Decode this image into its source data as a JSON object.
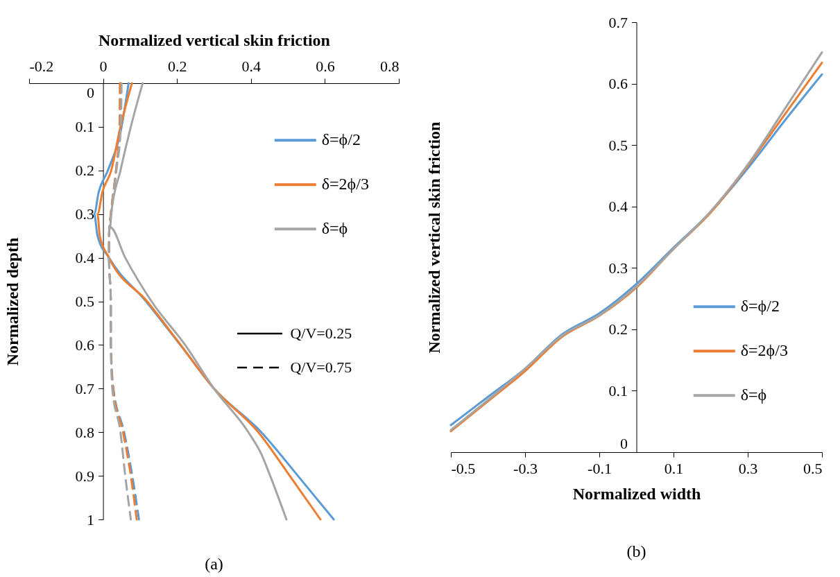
{
  "chart_data": [
    {
      "type": "line",
      "title": "(a)",
      "xlabel": "Normalized vertical skin friction",
      "ylabel": "Normalized depth",
      "xlim": [
        -0.2,
        0.8
      ],
      "xticks": [
        -0.2,
        0,
        0.2,
        0.4,
        0.6,
        0.8
      ],
      "ylim": [
        1,
        0
      ],
      "yticks": [
        0,
        0.1,
        0.2,
        0.3,
        0.4,
        0.5,
        0.6,
        0.7,
        0.8,
        0.9,
        1
      ],
      "legend": "top right",
      "annotations": [
        "Q/V=0.25",
        "Q/V=0.75"
      ],
      "series": [
        {
          "name": "δ=ϕ/2",
          "color": "#5b9bd5",
          "line_style": "solid",
          "x": [
            0.069,
            0.05,
            0.013,
            -0.012,
            -0.024,
            -0.015,
            0.016,
            0.116,
            0.209,
            0.3,
            0.428,
            0.527,
            0.624
          ],
          "values": [
            0,
            0.1,
            0.2,
            0.25,
            0.3,
            0.35,
            0.4,
            0.5,
            0.6,
            0.7,
            0.8,
            0.9,
            1
          ]
        },
        {
          "name": "δ=2ϕ/3",
          "color": "#ed7d31",
          "line_style": "solid",
          "x": [
            0.078,
            0.047,
            0.022,
            -0.002,
            -0.015,
            -0.009,
            0.016,
            0.119,
            0.21,
            0.3,
            0.42,
            0.505,
            0.588
          ],
          "values": [
            0,
            0.1,
            0.2,
            0.25,
            0.3,
            0.35,
            0.4,
            0.5,
            0.6,
            0.7,
            0.8,
            0.9,
            1
          ]
        },
        {
          "name": "δ=ϕ",
          "color": "#a5a5a5",
          "line_style": "solid",
          "x": [
            0.107,
            0.075,
            0.047,
            0.022,
            0.019,
            0.06,
            0.131,
            0.222,
            0.3,
            0.393,
            0.428,
            0.452,
            0.496
          ],
          "values": [
            0,
            0.1,
            0.2,
            0.3,
            0.33,
            0.4,
            0.5,
            0.6,
            0.7,
            0.8,
            0.85,
            0.9,
            1
          ]
        },
        {
          "color": "#5b9bd5",
          "line_style": "dashed",
          "x": [
            0.046,
            0.045,
            0.035,
            0.021,
            0.016,
            0.016,
            0.021,
            0.021,
            0.028,
            0.057,
            0.079,
            0.097
          ],
          "values": [
            0,
            0.1,
            0.2,
            0.3,
            0.35,
            0.4,
            0.5,
            0.6,
            0.7,
            0.8,
            0.9,
            1
          ]
        },
        {
          "color": "#ed7d31",
          "line_style": "dashed",
          "x": [
            0.046,
            0.045,
            0.035,
            0.021,
            0.016,
            0.016,
            0.021,
            0.021,
            0.027,
            0.054,
            0.075,
            0.091
          ],
          "values": [
            0,
            0.1,
            0.2,
            0.3,
            0.35,
            0.4,
            0.5,
            0.6,
            0.7,
            0.8,
            0.9,
            1
          ]
        },
        {
          "color": "#a5a5a5",
          "line_style": "dashed",
          "x": [
            0.05,
            0.048,
            0.036,
            0.022,
            0.016,
            0.016,
            0.021,
            0.021,
            0.025,
            0.047,
            0.06,
            0.075
          ],
          "values": [
            0,
            0.1,
            0.2,
            0.3,
            0.35,
            0.4,
            0.5,
            0.6,
            0.7,
            0.8,
            0.9,
            1
          ]
        }
      ]
    },
    {
      "type": "line",
      "title": "(b)",
      "xlabel": "Normalized width",
      "ylabel": "Normalized vertical skin friction",
      "xlim": [
        -0.5,
        0.5
      ],
      "xticks": [
        -0.5,
        -0.3,
        -0.1,
        0.1,
        0.3,
        0.5
      ],
      "ylim": [
        0,
        0.7
      ],
      "yticks": [
        0,
        0.1,
        0.2,
        0.3,
        0.4,
        0.5,
        0.6,
        0.7
      ],
      "legend": "right",
      "x": [
        -0.5,
        -0.4,
        -0.3,
        -0.2,
        -0.1,
        0,
        0.1,
        0.2,
        0.3,
        0.4,
        0.5
      ],
      "series": [
        {
          "name": "δ=ϕ/2",
          "color": "#5b9bd5",
          "values": [
            0.044,
            0.09,
            0.136,
            0.192,
            0.226,
            0.274,
            0.333,
            0.391,
            0.462,
            0.54,
            0.615
          ]
        },
        {
          "name": "δ=2ϕ/3",
          "color": "#ed7d31",
          "values": [
            0.034,
            0.083,
            0.132,
            0.188,
            0.222,
            0.268,
            0.331,
            0.39,
            0.466,
            0.55,
            0.634
          ]
        },
        {
          "name": "δ=ϕ",
          "color": "#a5a5a5",
          "values": [
            0.036,
            0.085,
            0.136,
            0.19,
            0.223,
            0.27,
            0.331,
            0.392,
            0.468,
            0.559,
            0.651
          ]
        }
      ]
    }
  ]
}
